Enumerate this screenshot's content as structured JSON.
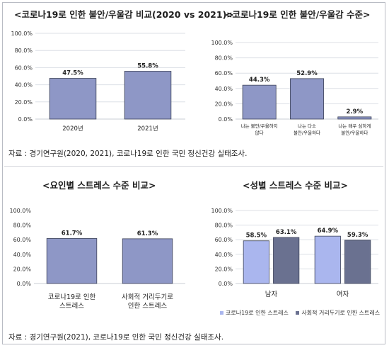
{
  "panels": {
    "p1": {
      "title": "<코로나19로 인한 불안/우울감 비교(2020 vs 2021)>"
    },
    "p2": {
      "title": "<코로나19로 인한 불안/우울감 수준>"
    },
    "p3": {
      "title": "<요인별 스트레스 수준 비교>"
    },
    "p4": {
      "title": "<성별 스트레스 수준 비교>"
    }
  },
  "sources": {
    "top": "자료 : 경기연구원(2020, 2021), 코로나19로 인한 국민 정신건강 실태조사.",
    "bottom": "자료 : 경기연구원(2021), 코로나19로 인한 국민 정신건강 실태조사."
  },
  "colors": {
    "bar_main": "#8e97c6",
    "bar_dark": "#6a7190",
    "bar_light": "#aab6ee",
    "grid": "#dcdfe6"
  },
  "chart_data": [
    {
      "type": "bar",
      "title": "<코로나19로 인한 불안/우울감 비교(2020 vs 2021)>",
      "categories": [
        "2020년",
        "2021년"
      ],
      "values": [
        47.5,
        55.8
      ],
      "value_labels": [
        "47.5%",
        "55.8%"
      ],
      "yticks": [
        "0.0%",
        "20.0%",
        "40.0%",
        "60.0%",
        "80.0%",
        "100.0%"
      ],
      "ylim": [
        0,
        100
      ],
      "grid": true
    },
    {
      "type": "bar",
      "title": "<코로나19로 인한 불안/우울감 수준>",
      "categories": [
        [
          "나는 불안/우울하지",
          "않다"
        ],
        [
          "나는 다소",
          "불안/우울하다"
        ],
        [
          "나는 매우 심하게",
          "불안/우울하다"
        ]
      ],
      "values": [
        44.3,
        52.9,
        2.9
      ],
      "value_labels": [
        "44.3%",
        "52.9%",
        "2.9%"
      ],
      "yticks": [
        "0.0%",
        "20.0%",
        "40.0%",
        "60.0%",
        "80.0%",
        "100.0%"
      ],
      "ylim": [
        0,
        100
      ],
      "grid": true
    },
    {
      "type": "bar",
      "title": "<요인별 스트레스 수준 비교>",
      "categories": [
        [
          "코로나19로 인한",
          "스트레스"
        ],
        [
          "사회적 거리두기로",
          "인한 스트레스"
        ]
      ],
      "values": [
        61.7,
        61.3
      ],
      "value_labels": [
        "61.7%",
        "61.3%"
      ],
      "yticks": [
        "0.0%",
        "20.0%",
        "40.0%",
        "60.0%",
        "80.0%",
        "100.0%"
      ],
      "ylim": [
        0,
        100
      ],
      "grid": false
    },
    {
      "type": "bar",
      "title": "<성별 스트레스 수준 비교>",
      "categories": [
        "남자",
        "여자"
      ],
      "series": [
        {
          "name": "코로나19로 인한 스트레스",
          "values": [
            58.5,
            64.9
          ],
          "value_labels": [
            "58.5%",
            "64.9%"
          ]
        },
        {
          "name": "사회적 거리두기로 인한 스트레스",
          "values": [
            63.1,
            59.3
          ],
          "value_labels": [
            "63.1%",
            "59.3%"
          ]
        }
      ],
      "yticks": [
        "0.0%",
        "20.0%",
        "40.0%",
        "60.0%",
        "80.0%",
        "100.0%"
      ],
      "ylim": [
        0,
        100
      ],
      "grid": true,
      "legend": "bottom"
    }
  ]
}
